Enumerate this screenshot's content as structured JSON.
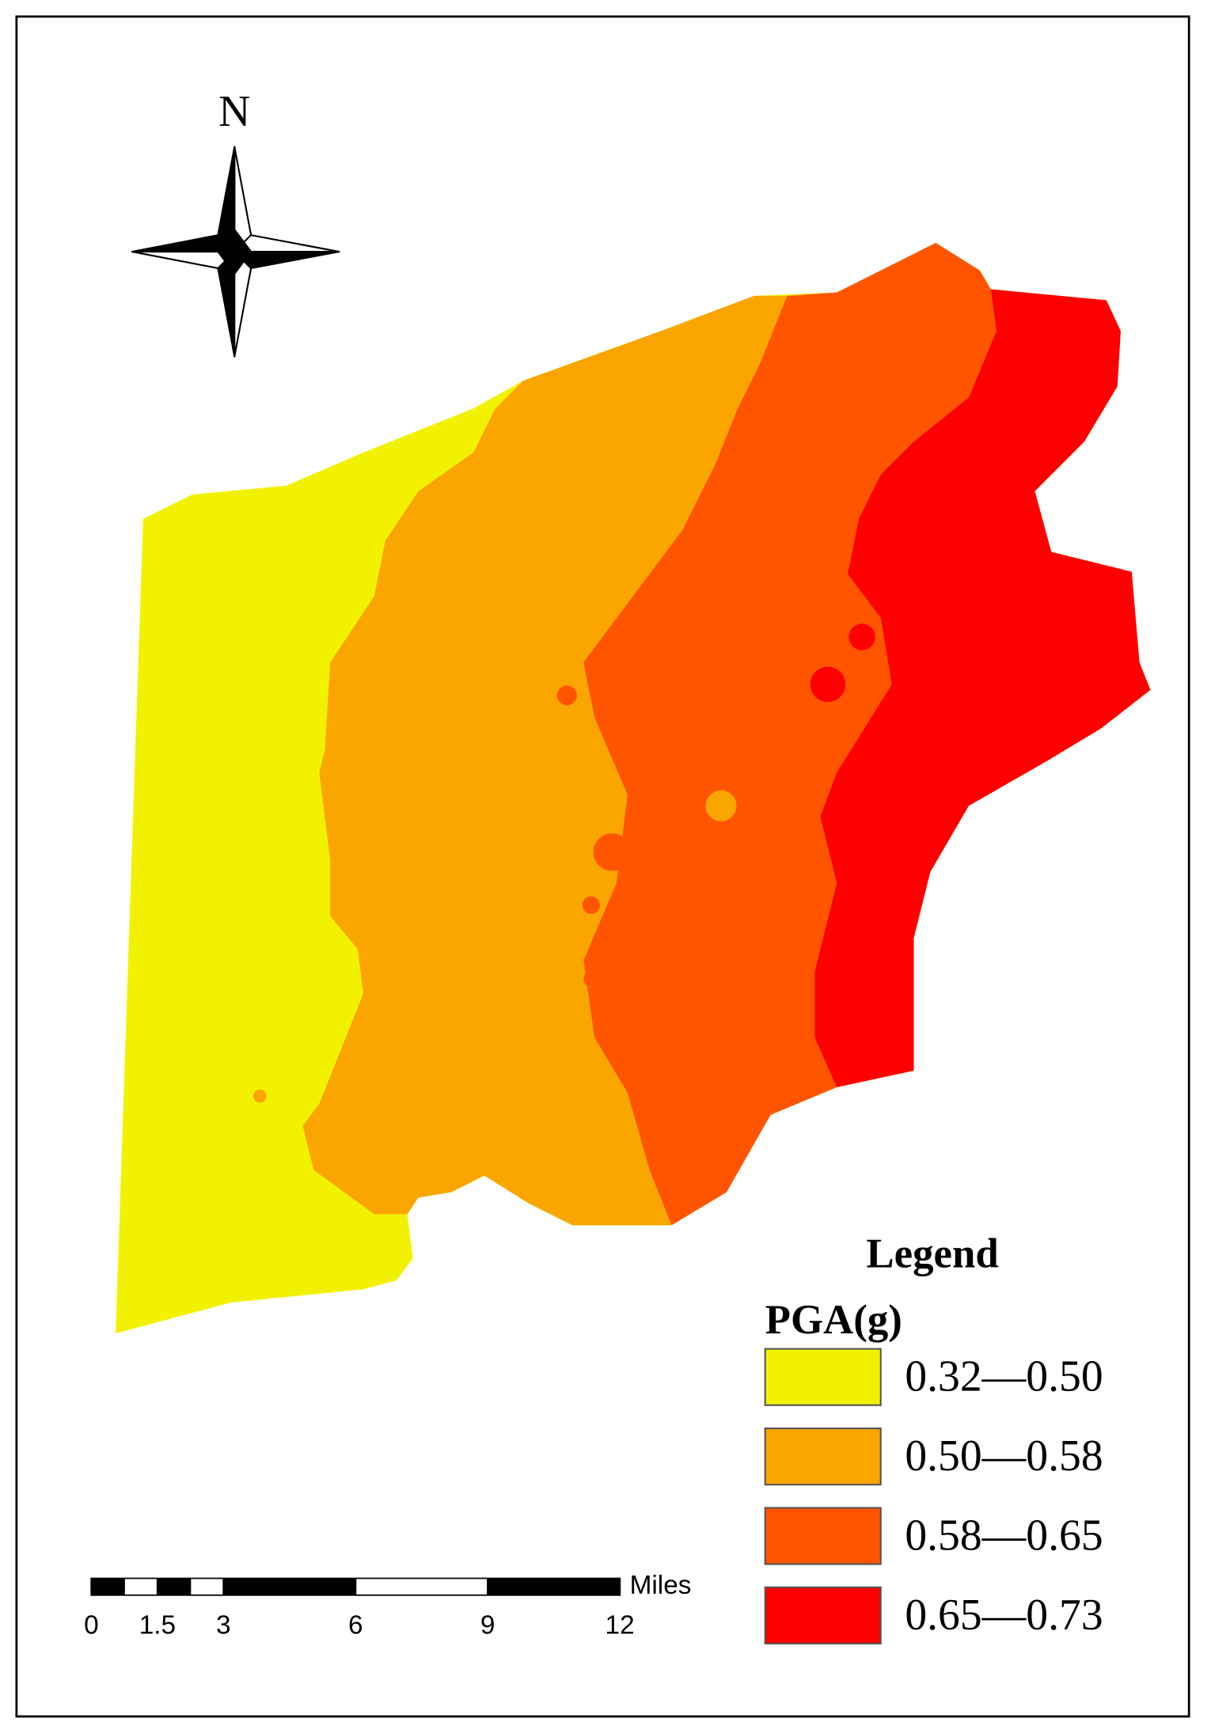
{
  "map": {
    "compass": {
      "label": "N"
    },
    "legend": {
      "title": "Legend",
      "subtitle": "PGA(g)",
      "items": [
        {
          "label": "0.32—0.50",
          "color": "#f2f200"
        },
        {
          "label": "0.50—0.58",
          "color": "#fba500"
        },
        {
          "label": "0.58—0.65",
          "color": "#ff5500"
        },
        {
          "label": "0.65—0.73",
          "color": "#ff0000"
        }
      ]
    },
    "scale_bar": {
      "unit": "Miles",
      "ticks": [
        0,
        1.5,
        3,
        6,
        9,
        12
      ]
    }
  }
}
